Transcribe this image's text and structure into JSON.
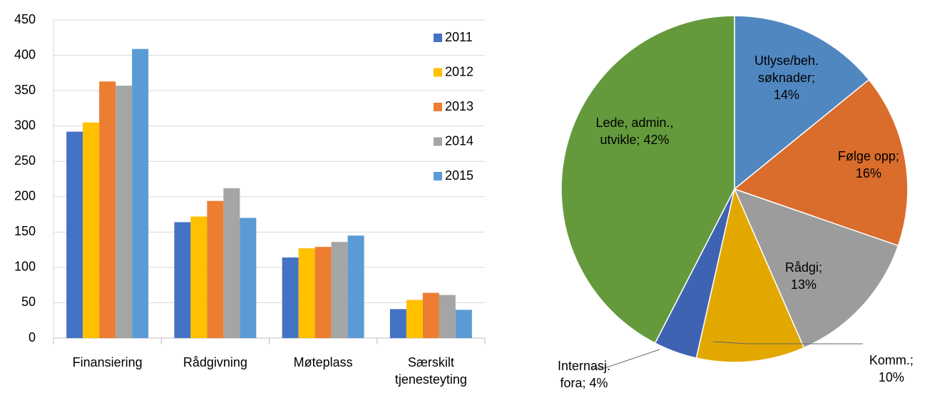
{
  "chart_data": [
    {
      "type": "bar",
      "categories": [
        "Finansiering",
        "Rådgivning",
        "Møteplass",
        "Særskilt tjenesteyting"
      ],
      "series": [
        {
          "name": "2011",
          "color": "#4472c4",
          "values": [
            292,
            164,
            114,
            41
          ]
        },
        {
          "name": "2012",
          "color": "#ffc000",
          "values": [
            305,
            172,
            127,
            54
          ]
        },
        {
          "name": "2013",
          "color": "#ed7d31",
          "values": [
            363,
            194,
            129,
            64
          ]
        },
        {
          "name": "2014",
          "color": "#a5a5a5",
          "values": [
            357,
            212,
            136,
            61
          ]
        },
        {
          "name": "2015",
          "color": "#5b9bd5",
          "values": [
            409,
            170,
            145,
            40
          ]
        }
      ],
      "ylim": [
        0,
        450
      ],
      "yticks": [
        0,
        50,
        100,
        150,
        200,
        250,
        300,
        350,
        400,
        450
      ],
      "grid": true,
      "legend": "upper right"
    },
    {
      "type": "pie",
      "values": [
        14,
        16,
        13,
        10,
        4,
        42
      ],
      "value_labels": [
        "Utlyse/beh. søknader; 14%",
        "Følge opp; 16%",
        "Rådgi; 13%",
        "Komm.; 10%",
        "Internasj. fora; 4%",
        "Lede, admin., utvikle; 42%"
      ],
      "colors": [
        "#5087c1",
        "#da6c2c",
        "#9c9c9c",
        "#e3a800",
        "#3f63b3",
        "#659a3c"
      ]
    }
  ]
}
